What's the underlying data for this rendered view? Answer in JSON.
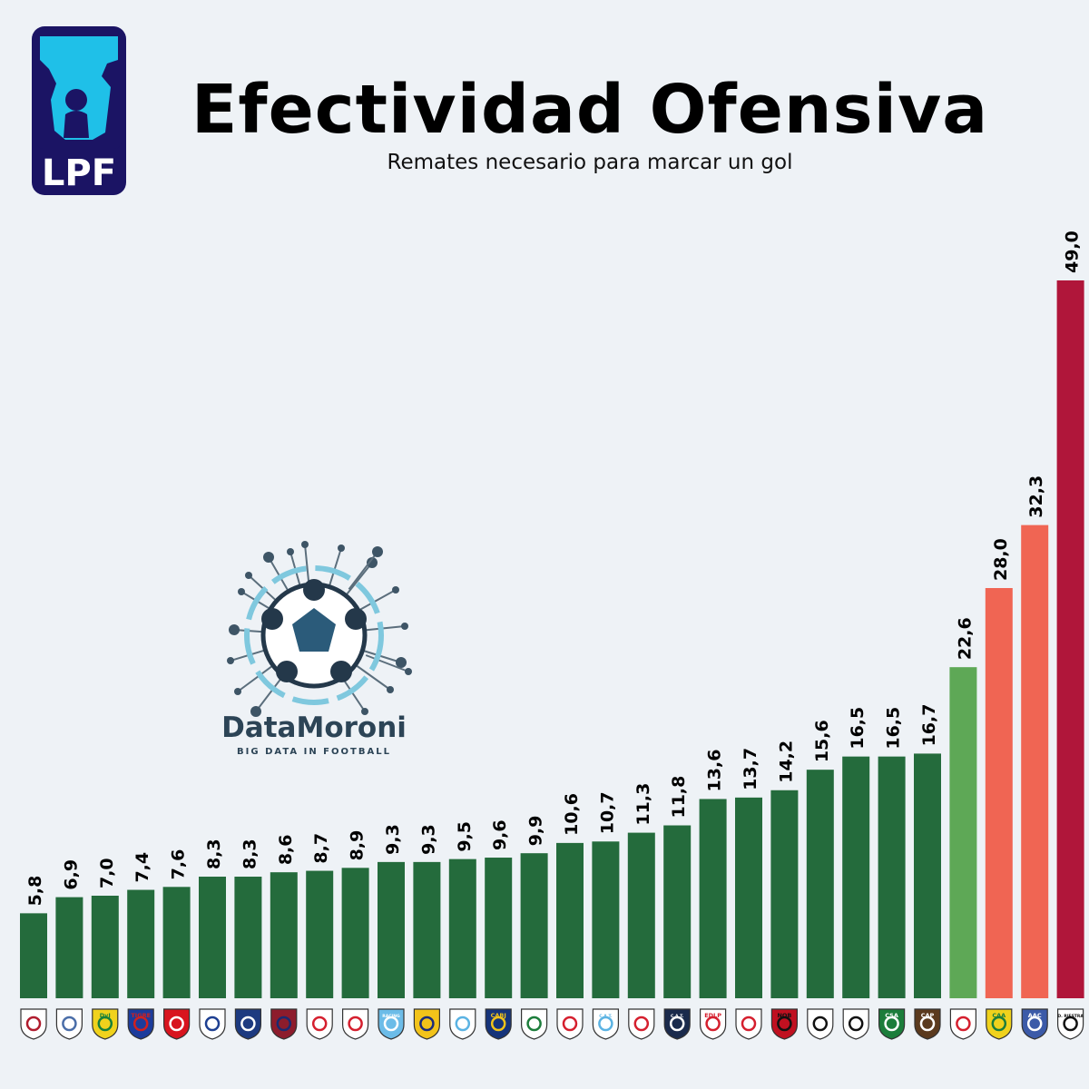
{
  "header": {
    "title": "Efectividad Ofensiva",
    "subtitle": "Remates necesario para marcar un gol"
  },
  "logo": {
    "text": "LPF",
    "color": "#1fc0e8",
    "border": "#1b1464"
  },
  "watermark": {
    "name": "DataMoroni",
    "tagline": "BIG DATA IN FOOTBALL"
  },
  "colors": {
    "dark_green": "#246b3c",
    "light_green": "#5ea856",
    "salmon": "#f06553",
    "crimson": "#b0163a",
    "background": "#eef2f6"
  },
  "chart_data": {
    "type": "bar",
    "title": "Efectividad Ofensiva",
    "subtitle": "Remates necesario para marcar un gol",
    "xlabel": "",
    "ylabel": "",
    "ylim": [
      0,
      49
    ],
    "grid": false,
    "legend": "none",
    "value_labels": [
      "5,8",
      "6,9",
      "7,0",
      "7,4",
      "7,6",
      "8,3",
      "8,3",
      "8,6",
      "8,7",
      "8,9",
      "9,3",
      "9,3",
      "9,5",
      "9,6",
      "9,9",
      "10,6",
      "10,7",
      "11,3",
      "11,8",
      "13,6",
      "13,7",
      "14,2",
      "15,6",
      "16,5",
      "16,5",
      "16,7",
      "22,6",
      "28,0",
      "32,3",
      "49,0"
    ],
    "values": [
      5.8,
      6.9,
      7.0,
      7.4,
      7.6,
      8.3,
      8.3,
      8.6,
      8.7,
      8.9,
      9.3,
      9.3,
      9.5,
      9.6,
      9.9,
      10.6,
      10.7,
      11.3,
      11.8,
      13.6,
      13.7,
      14.2,
      15.6,
      16.5,
      16.5,
      16.7,
      22.6,
      28.0,
      32.3,
      49.0
    ],
    "bar_colors": [
      "dark_green",
      "dark_green",
      "dark_green",
      "dark_green",
      "dark_green",
      "dark_green",
      "dark_green",
      "dark_green",
      "dark_green",
      "dark_green",
      "dark_green",
      "dark_green",
      "dark_green",
      "dark_green",
      "dark_green",
      "dark_green",
      "dark_green",
      "dark_green",
      "dark_green",
      "dark_green",
      "dark_green",
      "dark_green",
      "dark_green",
      "dark_green",
      "dark_green",
      "dark_green",
      "light_green",
      "salmon",
      "salmon",
      "crimson"
    ],
    "crests": [
      {
        "bg": "#ffffff",
        "fg": "#b01c2e",
        "text": ""
      },
      {
        "bg": "#ffffff",
        "fg": "#4a6da8",
        "text": ""
      },
      {
        "bg": "#f0d21c",
        "fg": "#17803a",
        "text": "DyJ"
      },
      {
        "bg": "#1c3c9c",
        "fg": "#d02020",
        "text": "TIGRE"
      },
      {
        "bg": "#d8141e",
        "fg": "#ffffff",
        "text": ""
      },
      {
        "bg": "#ffffff",
        "fg": "#1d3f91",
        "text": ""
      },
      {
        "bg": "#1d3a80",
        "fg": "#ffffff",
        "text": ""
      },
      {
        "bg": "#8d1c2c",
        "fg": "#1a2a70",
        "text": ""
      },
      {
        "bg": "#ffffff",
        "fg": "#d51f2e",
        "text": ""
      },
      {
        "bg": "#ffffff",
        "fg": "#d51f2e",
        "text": ""
      },
      {
        "bg": "#6cbce8",
        "fg": "#ffffff",
        "text": "RACING"
      },
      {
        "bg": "#f2c31a",
        "fg": "#1b2c7a",
        "text": ""
      },
      {
        "bg": "#ffffff",
        "fg": "#5bb3e3",
        "text": ""
      },
      {
        "bg": "#15337a",
        "fg": "#f2c31a",
        "text": "CABJ"
      },
      {
        "bg": "#ffffff",
        "fg": "#1c7d3b",
        "text": ""
      },
      {
        "bg": "#ffffff",
        "fg": "#d51f2e",
        "text": ""
      },
      {
        "bg": "#ffffff",
        "fg": "#5bb3e3",
        "text": "C.A.T."
      },
      {
        "bg": "#ffffff",
        "fg": "#d51f2e",
        "text": ""
      },
      {
        "bg": "#1a2a4c",
        "fg": "#ffffff",
        "text": "C.A.T."
      },
      {
        "bg": "#ffffff",
        "fg": "#d51f2e",
        "text": "EDLP"
      },
      {
        "bg": "#ffffff",
        "fg": "#d51f2e",
        "text": ""
      },
      {
        "bg": "#c01020",
        "fg": "#111111",
        "text": "NOB"
      },
      {
        "bg": "#ffffff",
        "fg": "#111111",
        "text": ""
      },
      {
        "bg": "#ffffff",
        "fg": "#111111",
        "text": ""
      },
      {
        "bg": "#1c7d3b",
        "fg": "#ffffff",
        "text": "CSA"
      },
      {
        "bg": "#5b3a1e",
        "fg": "#ffffff",
        "text": "CAP"
      },
      {
        "bg": "#ffffff",
        "fg": "#d51f2e",
        "text": ""
      },
      {
        "bg": "#f0d21c",
        "fg": "#1c7d3b",
        "text": "CAA"
      },
      {
        "bg": "#3b5aa8",
        "fg": "#ffffff",
        "text": "AAC"
      },
      {
        "bg": "#ffffff",
        "fg": "#111111",
        "text": "D. RIESTRA"
      }
    ]
  }
}
